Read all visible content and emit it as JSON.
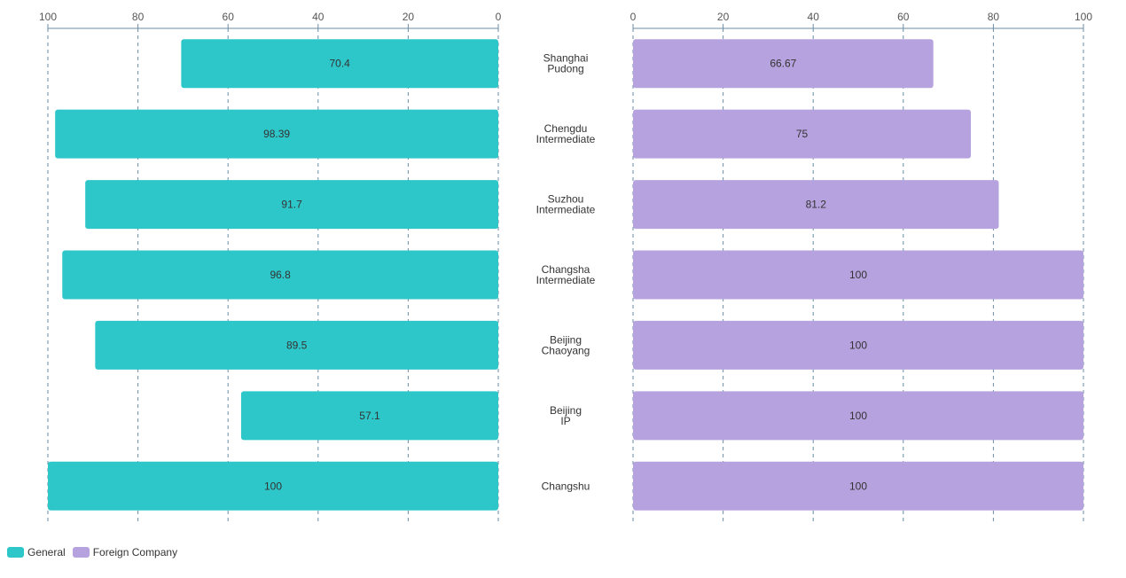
{
  "chart_data": {
    "type": "bar",
    "orientation": "horizontal-butterfly",
    "categories": [
      [
        "Shanghai",
        "Pudong"
      ],
      [
        "Chengdu",
        "Intermediate"
      ],
      [
        "Suzhou",
        "Intermediate"
      ],
      [
        "Changsha",
        "Intermediate"
      ],
      [
        "Beijing",
        "Chaoyang"
      ],
      [
        "Beijing",
        "IP"
      ],
      [
        "Changshu"
      ]
    ],
    "series": [
      {
        "name": "General",
        "color": "#2ec7c9",
        "values": [
          70.4,
          98.39,
          91.7,
          96.8,
          89.5,
          57.1,
          100
        ]
      },
      {
        "name": "Foreign Company",
        "color": "#b6a2de",
        "values": [
          66.67,
          75,
          81.2,
          100,
          100,
          100,
          100
        ]
      }
    ],
    "xlim": [
      0,
      100
    ],
    "xticks": [
      0,
      20,
      40,
      60,
      80,
      100
    ],
    "grid": true,
    "legend_position": "bottom-left"
  }
}
